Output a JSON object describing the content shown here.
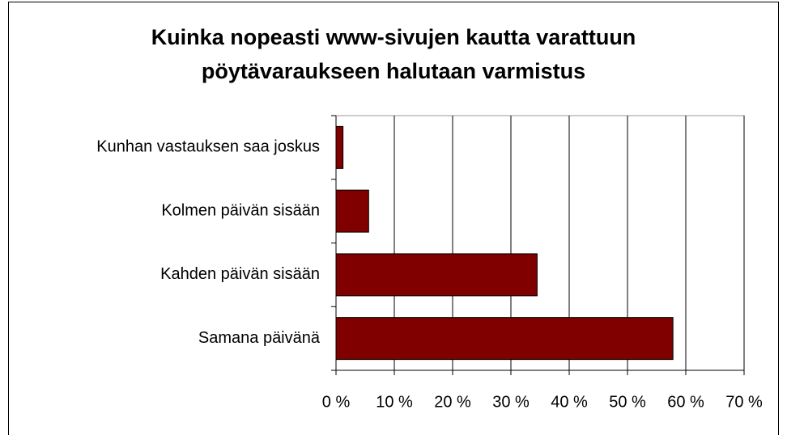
{
  "chart_data": {
    "type": "hbar",
    "title": [
      "Kuinka nopeasti www-sivujen kautta varattuun",
      "pöytävaraukseen halutaan varmistus"
    ],
    "categories": [
      "Kunhan vastauksen saa joskus",
      "Kolmen päivän sisään",
      "Kahden päivän sisään",
      "Samana päivänä"
    ],
    "values": [
      1.2,
      5.6,
      34.5,
      57.8
    ],
    "color": "#800000",
    "xlim": [
      0,
      70
    ],
    "xticks": [
      {
        "value": 0,
        "label": "0 %"
      },
      {
        "value": 10,
        "label": "10 %"
      },
      {
        "value": 20,
        "label": "20 %"
      },
      {
        "value": 30,
        "label": "30 %"
      },
      {
        "value": 40,
        "label": "40 %"
      },
      {
        "value": 50,
        "label": "50 %"
      },
      {
        "value": 60,
        "label": "60 %"
      },
      {
        "value": 70,
        "label": "70 %"
      }
    ],
    "grid": true
  }
}
